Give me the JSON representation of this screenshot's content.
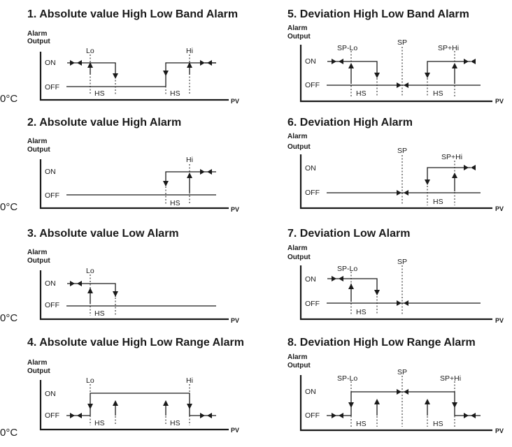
{
  "panels": [
    {
      "title": "1. Absolute value High Low Band Alarm",
      "y_label_1": "Alarm",
      "y_label_2": "Output",
      "on_label": "ON",
      "off_label": "OFF",
      "x_label": "PV",
      "origin_label": "0°C",
      "markers": [
        "Lo",
        "Hi"
      ],
      "hysteresis_labels": [
        "HS",
        "HS"
      ]
    },
    {
      "title": "2. Absolute value High Alarm",
      "y_label_1": "Alarm",
      "y_label_2": "Output",
      "on_label": "ON",
      "off_label": "OFF",
      "x_label": "PV",
      "origin_label": "0°C",
      "markers": [
        "Hi"
      ],
      "hysteresis_labels": [
        "HS"
      ]
    },
    {
      "title": "3. Absolute value Low Alarm",
      "y_label_1": "Alarm",
      "y_label_2": "Output",
      "on_label": "ON",
      "off_label": "OFF",
      "x_label": "PV",
      "origin_label": "0°C",
      "markers": [
        "Lo"
      ],
      "hysteresis_labels": [
        "HS"
      ]
    },
    {
      "title": "4. Absolute value High Low Range Alarm",
      "y_label_1": "Alarm",
      "y_label_2": "Output",
      "on_label": "ON",
      "off_label": "OFF",
      "x_label": "PV",
      "origin_label": "0°C",
      "markers": [
        "Lo",
        "Hi"
      ],
      "hysteresis_labels": [
        "HS",
        "HS"
      ]
    },
    {
      "title": "5. Deviation High Low Band Alarm",
      "y_label_1": "Alarm",
      "y_label_2": "Output",
      "on_label": "ON",
      "off_label": "OFF",
      "x_label": "PV",
      "markers": [
        "SP-Lo",
        "SP",
        "SP+Hi"
      ],
      "hysteresis_labels": [
        "HS",
        "HS"
      ]
    },
    {
      "title": "6. Deviation High Alarm",
      "y_label_1": "Alarm",
      "y_label_2": "Output",
      "on_label": "ON",
      "off_label": "OFF",
      "x_label": "PV",
      "markers": [
        "SP",
        "SP+Hi"
      ],
      "hysteresis_labels": [
        "HS"
      ]
    },
    {
      "title": "7. Deviation Low Alarm",
      "y_label_1": "Alarm",
      "y_label_2": "Output",
      "on_label": "ON",
      "off_label": "OFF",
      "x_label": "PV",
      "markers": [
        "SP-Lo",
        "SP"
      ],
      "hysteresis_labels": [
        "HS"
      ]
    },
    {
      "title": "8. Deviation High Low Range Alarm",
      "y_label_1": "Alarm",
      "y_label_2": "Output",
      "on_label": "ON",
      "off_label": "OFF",
      "x_label": "PV",
      "markers": [
        "SP-Lo",
        "SP",
        "SP+Hi"
      ],
      "hysteresis_labels": [
        "HS",
        "HS"
      ]
    }
  ]
}
